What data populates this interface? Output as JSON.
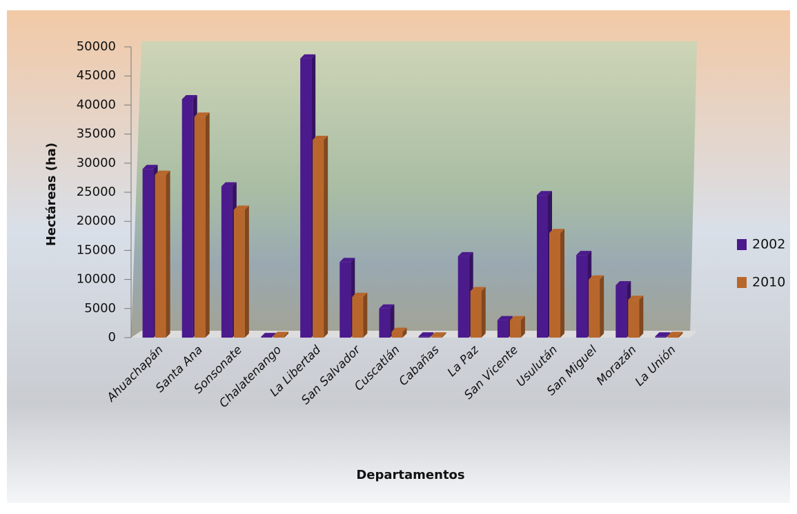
{
  "chart_data": {
    "type": "bar",
    "x_label": "Departamentos",
    "y_label": "Hectáreas (ha)",
    "categories": [
      "Ahuachapán",
      "Santa Ana",
      "Sonsonate",
      "Chalatenango",
      "La Libertad",
      "San Salvador",
      "Cuscatlán",
      "Cabañas",
      "La Paz",
      "San Vicente",
      "Usulután",
      "San Miguel",
      "Morazán",
      "La Unión"
    ],
    "series": [
      {
        "name": "2002",
        "color": "#4b1a8c",
        "values": [
          29000,
          41000,
          26000,
          100,
          48000,
          13000,
          5000,
          200,
          14000,
          3000,
          24500,
          14200,
          9000,
          200
        ]
      },
      {
        "name": "2010",
        "color": "#b8672c",
        "values": [
          28000,
          38000,
          22000,
          300,
          34000,
          7000,
          1000,
          200,
          8000,
          3000,
          18000,
          10000,
          6500,
          300
        ]
      }
    ],
    "ylim": [
      0,
      50000
    ],
    "yticks": [
      0,
      5000,
      10000,
      15000,
      20000,
      25000,
      30000,
      35000,
      40000,
      45000,
      50000
    ],
    "legend": "right"
  }
}
